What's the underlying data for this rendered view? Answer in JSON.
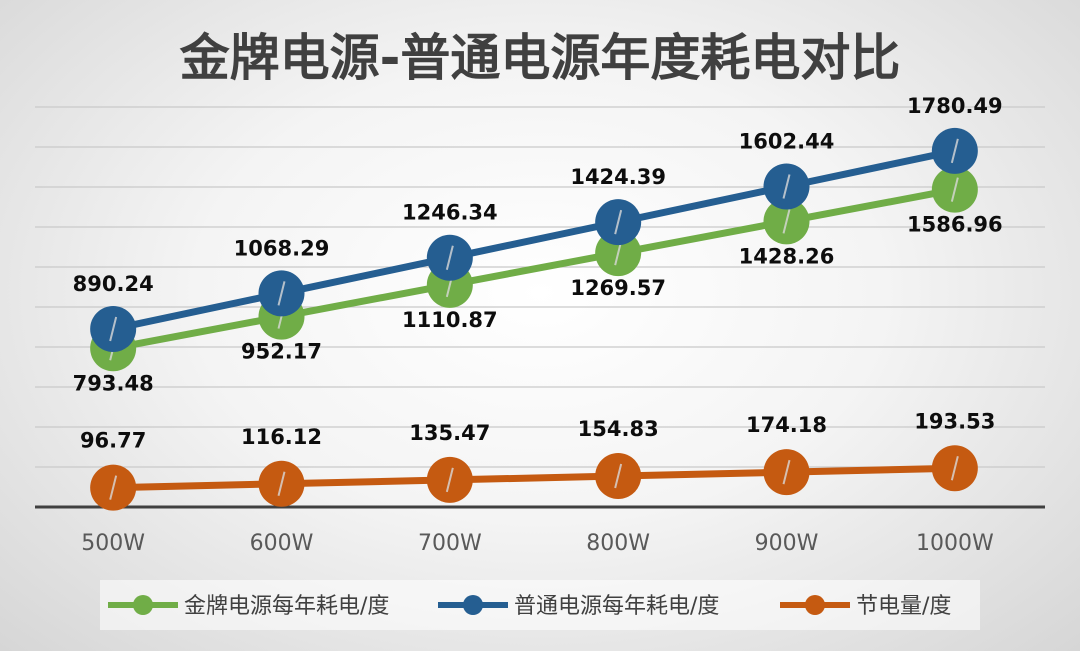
{
  "chart_data": {
    "type": "line",
    "title": "金牌电源-普通电源年度耗电对比",
    "xlabel": "",
    "ylabel": "",
    "categories": [
      "500W",
      "600W",
      "700W",
      "800W",
      "900W",
      "1000W"
    ],
    "ylim": [
      0,
      2000
    ],
    "grid": true,
    "legend_position": "bottom",
    "series": [
      {
        "name": "金牌电源每年耗电/度",
        "color": "#70ad47",
        "values": [
          793.48,
          952.17,
          1110.87,
          1269.57,
          1428.26,
          1586.96
        ]
      },
      {
        "name": "普通电源每年耗电/度",
        "color": "#255e91",
        "values": [
          890.24,
          1068.29,
          1246.34,
          1424.39,
          1602.44,
          1780.49
        ]
      },
      {
        "name": "节电量/度",
        "color": "#c55a11",
        "values": [
          96.77,
          116.12,
          135.47,
          154.83,
          174.18,
          193.53
        ]
      }
    ]
  }
}
